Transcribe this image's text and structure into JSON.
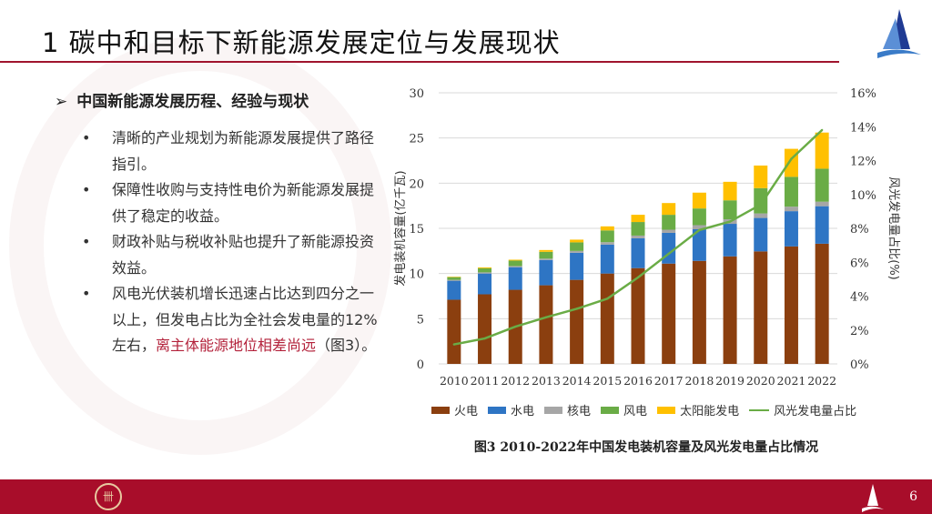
{
  "slide": {
    "title": "1 碳中和目标下新能源发展定位与发展现状",
    "heading": "中国新能源发展历程、经验与现状",
    "bullets": [
      {
        "text": "清晰的产业规划为新能源发展提供了路径指引。",
        "highlight": ""
      },
      {
        "text": "保障性收购与支持性电价为新能源发展提供了稳定的收益。",
        "highlight": ""
      },
      {
        "text": "财政补贴与税收补贴也提升了新能源投资效益。",
        "highlight": ""
      },
      {
        "text": "风电光伏装机增长迅速占比达到四分之一以上，但发电占比为全社会发电量的12%左右，",
        "highlight": "离主体能源地位相差尚远",
        "tail": "（图3）。"
      }
    ],
    "page_number": "6",
    "accent_color": "#a80d2a"
  },
  "chart_data": {
    "type": "bar",
    "stacked": true,
    "title": "图3 2010-2022年中国发电装机容量及风光发电量占比情况",
    "ylabel": "发电装机容量(亿千瓦)",
    "y2label": "风光发电量占比(%)",
    "ylim": [
      0,
      30
    ],
    "yticks": [
      "0",
      "5",
      "10",
      "15",
      "20",
      "25",
      "30"
    ],
    "y2lim": [
      0,
      16
    ],
    "y2ticks": [
      "0%",
      "2%",
      "4%",
      "6%",
      "8%",
      "10%",
      "12%",
      "14%",
      "16%"
    ],
    "grid": true,
    "legend_placement": "bottom",
    "categories": [
      "2010",
      "2011",
      "2012",
      "2013",
      "2014",
      "2015",
      "2016",
      "2017",
      "2018",
      "2019",
      "2020",
      "2021",
      "2022"
    ],
    "series": [
      {
        "name": "火电",
        "color": "#8b3f0f",
        "values": [
          7.1,
          7.7,
          8.2,
          8.7,
          9.3,
          10.0,
          10.6,
          11.1,
          11.4,
          11.9,
          12.45,
          13.0,
          13.3
        ]
      },
      {
        "name": "水电",
        "color": "#2e75c4",
        "values": [
          2.1,
          2.3,
          2.5,
          2.8,
          3.0,
          3.2,
          3.3,
          3.4,
          3.5,
          3.6,
          3.7,
          3.9,
          4.15
        ]
      },
      {
        "name": "核电",
        "color": "#a6a6a6",
        "values": [
          0.1,
          0.13,
          0.13,
          0.15,
          0.2,
          0.27,
          0.3,
          0.35,
          0.45,
          0.5,
          0.5,
          0.5,
          0.5
        ]
      },
      {
        "name": "风电",
        "color": "#6aac46",
        "values": [
          0.3,
          0.45,
          0.6,
          0.75,
          0.95,
          1.3,
          1.5,
          1.65,
          1.85,
          2.1,
          2.8,
          3.3,
          3.65
        ]
      },
      {
        "name": "太阳能发电",
        "color": "#ffc000",
        "values": [
          0.05,
          0.1,
          0.1,
          0.2,
          0.3,
          0.45,
          0.8,
          1.3,
          1.75,
          2.05,
          2.5,
          3.1,
          4.0
        ]
      }
    ],
    "line_series": {
      "name": "风光发电量占比",
      "color": "#6aac46",
      "axis": "right",
      "values": [
        1.15,
        1.5,
        2.2,
        2.75,
        3.25,
        3.85,
        5.1,
        6.5,
        7.9,
        8.4,
        9.4,
        12.1,
        13.8
      ]
    }
  }
}
